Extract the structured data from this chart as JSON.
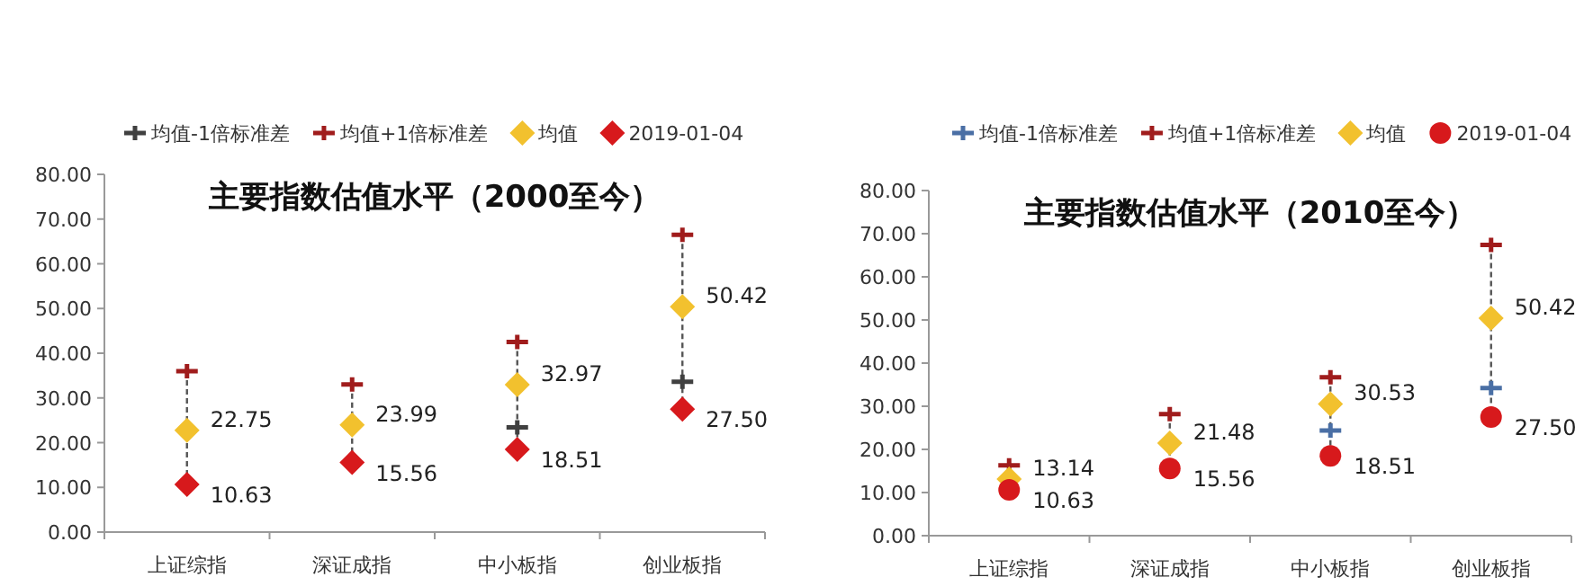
{
  "chart_data": [
    {
      "type": "scatter",
      "title": "主要指数估值水平（2000至今）",
      "categories": [
        "上证综指",
        "深证成指",
        "中小板指",
        "创业板指"
      ],
      "ylim": [
        0,
        80
      ],
      "yticks": [
        {
          "value": 0,
          "label": "0.00"
        },
        {
          "value": 10,
          "label": "10.00"
        },
        {
          "value": 20,
          "label": "20.00"
        },
        {
          "value": 30,
          "label": "30.00"
        },
        {
          "value": 40,
          "label": "40.00"
        },
        {
          "value": 50,
          "label": "50.00"
        },
        {
          "value": 60,
          "label": "60.00"
        },
        {
          "value": 70,
          "label": "70.00"
        },
        {
          "value": 80,
          "label": "80.00"
        }
      ],
      "legend": "top",
      "grid": false,
      "series": [
        {
          "name": "均值-1倍标准差",
          "color": "#404040",
          "marker": "cross",
          "values": [
            null,
            null,
            23.4,
            33.6
          ]
        },
        {
          "name": "均值+1倍标准差",
          "color": "#a01c1c",
          "marker": "cross",
          "values": [
            36.0,
            33.0,
            42.5,
            66.5
          ]
        },
        {
          "name": "均值",
          "color": "#f2c12e",
          "marker": "diamond",
          "values": [
            22.75,
            23.99,
            32.97,
            50.42
          ],
          "value_labels": [
            "22.75",
            "23.99",
            "32.97",
            "50.42"
          ]
        },
        {
          "name": "2019-01-04",
          "color": "#d7191c",
          "marker": "diamond",
          "values": [
            10.63,
            15.56,
            18.51,
            27.5
          ],
          "value_labels": [
            "10.63",
            "15.56",
            "18.51",
            "27.50"
          ]
        }
      ]
    },
    {
      "type": "scatter",
      "title": "主要指数估值水平（2010至今）",
      "categories": [
        "上证综指",
        "深证成指",
        "中小板指",
        "创业板指"
      ],
      "ylim": [
        0,
        80
      ],
      "yticks": [
        {
          "value": 0,
          "label": "0.00"
        },
        {
          "value": 10,
          "label": "10.00"
        },
        {
          "value": 20,
          "label": "20.00"
        },
        {
          "value": 30,
          "label": "30.00"
        },
        {
          "value": 40,
          "label": "40.00"
        },
        {
          "value": 50,
          "label": "50.00"
        },
        {
          "value": 60,
          "label": "60.00"
        },
        {
          "value": 70,
          "label": "70.00"
        },
        {
          "value": 80,
          "label": "80.00"
        }
      ],
      "legend": "top",
      "grid": false,
      "series": [
        {
          "name": "均值-1倍标准差",
          "color": "#4a6fa5",
          "marker": "cross",
          "values": [
            null,
            null,
            24.4,
            34.2
          ]
        },
        {
          "name": "均值+1倍标准差",
          "color": "#a01c1c",
          "marker": "cross",
          "values": [
            16.3,
            28.2,
            36.7,
            67.4
          ]
        },
        {
          "name": "均值",
          "color": "#f2c12e",
          "marker": "diamond",
          "values": [
            13.14,
            21.48,
            30.53,
            50.42
          ],
          "value_labels": [
            "13.14",
            "21.48",
            "30.53",
            "50.42"
          ]
        },
        {
          "name": "2019-01-04",
          "color": "#d7191c",
          "marker": "circle",
          "values": [
            10.63,
            15.56,
            18.51,
            27.5
          ],
          "value_labels": [
            "10.63",
            "15.56",
            "18.51",
            "27.50"
          ]
        }
      ]
    }
  ]
}
